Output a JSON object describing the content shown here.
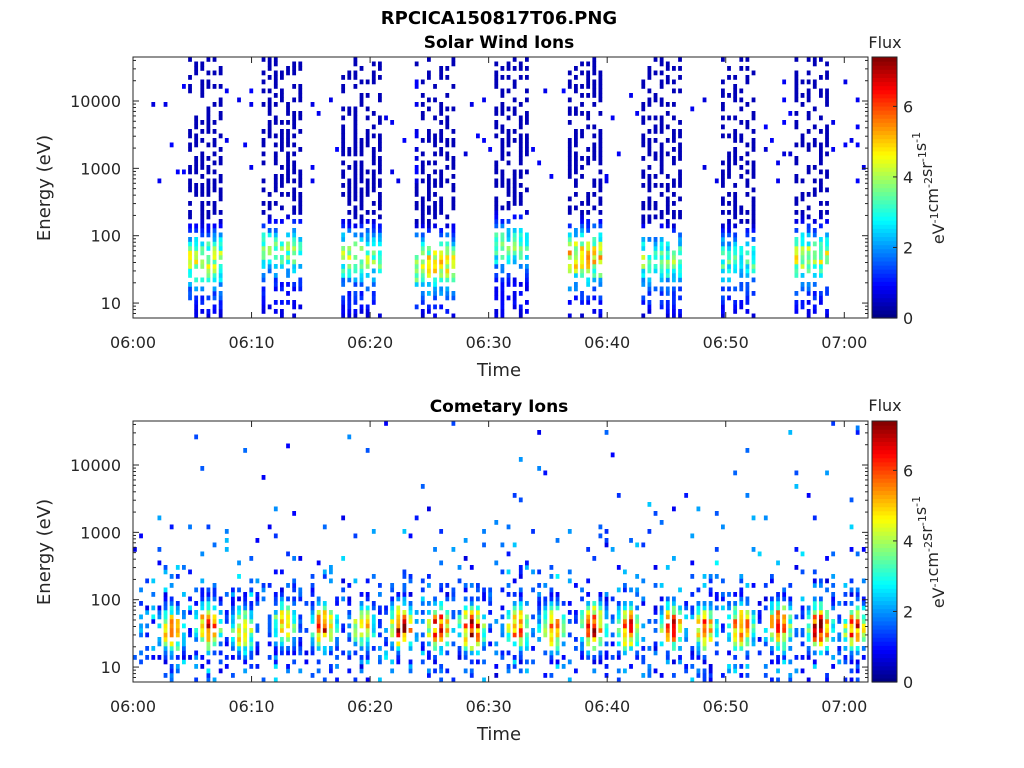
{
  "figure_title": "RPCICA150817T06.PNG",
  "colorbar": {
    "label": "Flux",
    "unit_prefix": "eV",
    "unit_parts": [
      {
        "t": "eV",
        "sup": ""
      },
      {
        "t": "",
        "sup": "-1"
      },
      {
        "t": "cm",
        "sup": ""
      },
      {
        "t": "",
        "sup": "-2"
      },
      {
        "t": "sr",
        "sup": ""
      },
      {
        "t": "",
        "sup": "-1"
      },
      {
        "t": "s",
        "sup": ""
      },
      {
        "t": "",
        "sup": "-1"
      }
    ],
    "ticks": [
      0,
      2,
      4,
      6
    ],
    "tick_labels": [
      "0",
      "2",
      "4",
      "6"
    ],
    "range": [
      0,
      7.4
    ],
    "colormap": "jet"
  },
  "chart_data": [
    {
      "type": "heatmap",
      "title": "Solar Wind Ions",
      "xlabel": "Time",
      "ylabel": "Energy (eV)",
      "yscale": "log",
      "ylim": [
        6,
        45000
      ],
      "xlim_minutes": [
        0,
        62
      ],
      "x_ticks": [
        "06:00",
        "06:10",
        "06:20",
        "06:30",
        "06:40",
        "06:50",
        "07:00"
      ],
      "x_tick_minutes": [
        0,
        10,
        20,
        30,
        40,
        50,
        60
      ],
      "y_ticks": [
        10,
        100,
        1000,
        10000
      ],
      "y_tick_labels": [
        "10",
        "100",
        "1000",
        "10000"
      ],
      "bursts": [
        {
          "start_min": 4.6,
          "end_min": 8.0,
          "peak_energy_eV": 45,
          "peak_flux": 4.2
        },
        {
          "start_min": 11.0,
          "end_min": 14.3,
          "peak_energy_eV": 60,
          "peak_flux": 3.6
        },
        {
          "start_min": 17.6,
          "end_min": 21.3,
          "peak_energy_eV": 50,
          "peak_flux": 3.8
        },
        {
          "start_min": 24.0,
          "end_min": 27.3,
          "peak_energy_eV": 40,
          "peak_flux": 4.6
        },
        {
          "start_min": 30.3,
          "end_min": 33.6,
          "peak_energy_eV": 70,
          "peak_flux": 3.4
        },
        {
          "start_min": 36.8,
          "end_min": 39.8,
          "peak_energy_eV": 50,
          "peak_flux": 5.0
        },
        {
          "start_min": 43.1,
          "end_min": 46.4,
          "peak_energy_eV": 45,
          "peak_flux": 3.6
        },
        {
          "start_min": 49.5,
          "end_min": 52.9,
          "peak_energy_eV": 45,
          "peak_flux": 3.2
        },
        {
          "start_min": 55.7,
          "end_min": 59.1,
          "peak_energy_eV": 50,
          "peak_flux": 4.2
        }
      ]
    },
    {
      "type": "heatmap",
      "title": "Cometary Ions",
      "xlabel": "Time",
      "ylabel": "Energy (eV)",
      "yscale": "log",
      "ylim": [
        6,
        45000
      ],
      "xlim_minutes": [
        0,
        62
      ],
      "x_ticks": [
        "06:00",
        "06:10",
        "06:20",
        "06:30",
        "06:40",
        "06:50",
        "07:00"
      ],
      "x_tick_minutes": [
        0,
        10,
        20,
        30,
        40,
        50,
        60
      ],
      "y_ticks": [
        10,
        100,
        1000,
        10000
      ],
      "y_tick_labels": [
        "10",
        "100",
        "1000",
        "10000"
      ],
      "bursts": [
        {
          "center_min": 3.4,
          "peak_energy_eV": 35,
          "peak_flux": 5.8
        },
        {
          "center_min": 6.5,
          "peak_energy_eV": 40,
          "peak_flux": 6.8
        },
        {
          "center_min": 9.4,
          "peak_energy_eV": 35,
          "peak_flux": 5.4
        },
        {
          "center_min": 12.9,
          "peak_energy_eV": 45,
          "peak_flux": 5.2
        },
        {
          "center_min": 16.2,
          "peak_energy_eV": 40,
          "peak_flux": 6.4
        },
        {
          "center_min": 19.5,
          "peak_energy_eV": 40,
          "peak_flux": 5.2
        },
        {
          "center_min": 22.8,
          "peak_energy_eV": 40,
          "peak_flux": 7.2
        },
        {
          "center_min": 25.9,
          "peak_energy_eV": 40,
          "peak_flux": 6.8
        },
        {
          "center_min": 28.7,
          "peak_energy_eV": 38,
          "peak_flux": 7.2
        },
        {
          "center_min": 32.6,
          "peak_energy_eV": 40,
          "peak_flux": 6.2
        },
        {
          "center_min": 35.5,
          "peak_energy_eV": 38,
          "peak_flux": 6.0
        },
        {
          "center_min": 38.9,
          "peak_energy_eV": 40,
          "peak_flux": 7.0
        },
        {
          "center_min": 41.9,
          "peak_energy_eV": 38,
          "peak_flux": 6.6
        },
        {
          "center_min": 45.6,
          "peak_energy_eV": 40,
          "peak_flux": 6.4
        },
        {
          "center_min": 48.4,
          "peak_energy_eV": 38,
          "peak_flux": 6.0
        },
        {
          "center_min": 51.4,
          "peak_energy_eV": 40,
          "peak_flux": 6.6
        },
        {
          "center_min": 54.6,
          "peak_energy_eV": 40,
          "peak_flux": 6.8
        },
        {
          "center_min": 58.0,
          "peak_energy_eV": 40,
          "peak_flux": 7.2
        },
        {
          "center_min": 61.0,
          "peak_energy_eV": 38,
          "peak_flux": 6.4
        }
      ]
    }
  ]
}
